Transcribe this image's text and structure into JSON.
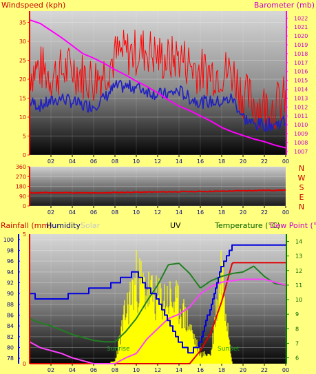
{
  "colors": {
    "background": "#ffff80",
    "wind_speed": "#ff0000",
    "wind_avg": "#2020c0",
    "barometer": "#ff00ff",
    "wind_dir": "#e00000",
    "rainfall": "#e00000",
    "humidity": "#0000e0",
    "solar": "#ffff00",
    "temperature": "#208020",
    "dew_point": "#ff40ff",
    "label_red": "#cc0000",
    "label_navy": "#000080",
    "label_green": "#006000",
    "label_magenta": "#cc00cc",
    "label_gray": "#c8c8c8",
    "rain_axis": "#ff0000",
    "humidity_axis": "#0000ff",
    "temp_axis": "#008000"
  },
  "x_ticks": [
    "02",
    "04",
    "06",
    "08",
    "10",
    "12",
    "14",
    "16",
    "18",
    "20",
    "22",
    "00"
  ],
  "chart_data": [
    {
      "type": "line",
      "panel": "wind-barometer",
      "title": "",
      "left_axis_label": "Windspeed (kph)",
      "right_axis_label": "Barometer (mb)",
      "left_ticks": [
        "0",
        "5",
        "10",
        "15",
        "20",
        "25",
        "30",
        "35"
      ],
      "left_ylim": [
        0,
        38
      ],
      "right_ticks": [
        "1007",
        "1008",
        "1009",
        "1010",
        "1011",
        "1012",
        "1013",
        "1014",
        "1015",
        "1016",
        "1017",
        "1018",
        "1019",
        "1020",
        "1021",
        "1022"
      ],
      "right_ylim": [
        1006.6,
        1022.8
      ],
      "x_hours": [
        0,
        1,
        2,
        3,
        4,
        5,
        6,
        7,
        8,
        9,
        10,
        11,
        12,
        13,
        14,
        15,
        16,
        17,
        18,
        19,
        20,
        21,
        22,
        23,
        24
      ],
      "series": [
        {
          "key": "wind_gust",
          "axis": "left",
          "values": [
            22,
            23,
            21,
            22,
            23,
            21,
            20,
            22,
            26,
            27,
            27,
            28,
            26,
            25,
            26,
            24,
            22,
            22,
            22,
            22,
            16,
            14,
            13,
            13,
            15
          ]
        },
        {
          "key": "wind_avg",
          "axis": "left",
          "values": [
            14,
            13,
            14,
            15,
            14,
            13,
            13,
            15,
            18,
            18,
            18,
            17,
            16,
            16,
            17,
            15,
            14,
            14,
            14,
            15,
            10,
            8,
            8,
            8,
            9
          ]
        },
        {
          "key": "barometer",
          "axis": "right",
          "values": [
            1021.8,
            1021.4,
            1020.6,
            1019.8,
            1018.9,
            1018.0,
            1017.5,
            1016.9,
            1016.2,
            1015.6,
            1014.9,
            1014.3,
            1013.6,
            1012.8,
            1012.1,
            1011.6,
            1011.0,
            1010.4,
            1009.7,
            1009.2,
            1008.8,
            1008.4,
            1008.1,
            1007.7,
            1007.4
          ]
        }
      ]
    },
    {
      "type": "line",
      "panel": "wind-direction",
      "left_ticks": [
        "0",
        "90",
        "180",
        "270",
        "360"
      ],
      "left_ylim": [
        0,
        360
      ],
      "right_labels": [
        "N",
        "W",
        "S",
        "E",
        "N"
      ],
      "x_hours": [
        0,
        3,
        6,
        9,
        12,
        15,
        18,
        21,
        24
      ],
      "series": [
        {
          "key": "wind_direction",
          "values": [
            120,
            122,
            118,
            125,
            128,
            132,
            135,
            142,
            145
          ]
        }
      ]
    },
    {
      "type": "line",
      "panel": "rain-humidity-solar-uv-temperature",
      "rain_axis_label": "Rainfall (mm)",
      "humidity_axis_label": "Humidity",
      "solar_label": "Solar",
      "uv_label": "UV",
      "temperature_label": "Temperature (°C)",
      "dewpoint_label": "Dew Point (°C)",
      "rain_ticks": [
        "0",
        "5"
      ],
      "rain_ylim": [
        0,
        5
      ],
      "humidity_ticks": [
        "78",
        "80",
        "82",
        "84",
        "86",
        "88",
        "90",
        "92",
        "94",
        "96",
        "98",
        "100"
      ],
      "humidity_ylim": [
        77,
        101
      ],
      "temp_ticks": [
        "6",
        "7",
        "8",
        "9",
        "10",
        "11",
        "12",
        "13",
        "14"
      ],
      "temp_ylim": [
        5.6,
        14.5
      ],
      "annotations": [
        "Sunrise",
        "SunSet"
      ],
      "x_hours": [
        0,
        1,
        2,
        3,
        4,
        5,
        6,
        7,
        8,
        9,
        10,
        11,
        12,
        13,
        14,
        15,
        16,
        17,
        18,
        19,
        20,
        21,
        22,
        23,
        24
      ],
      "series": [
        {
          "key": "humidity",
          "axis": "humidity",
          "values": [
            90,
            89,
            89,
            89,
            90,
            90,
            91,
            91,
            92,
            93,
            94,
            91,
            89,
            85,
            81,
            79,
            81,
            88,
            95,
            99,
            99,
            99,
            99,
            99,
            99
          ]
        },
        {
          "key": "temperature",
          "axis": "temp",
          "values": [
            8.7,
            8.4,
            8.2,
            7.9,
            7.6,
            7.4,
            7.2,
            7.1,
            7.1,
            7.8,
            8.7,
            9.9,
            11.0,
            12.4,
            12.5,
            11.8,
            10.8,
            11.3,
            11.6,
            11.8,
            11.9,
            12.3,
            11.6,
            11.1,
            11.0
          ]
        },
        {
          "key": "dew_point",
          "axis": "temp",
          "values": [
            7.1,
            6.7,
            6.5,
            6.3,
            6.0,
            5.8,
            5.6,
            5.6,
            5.6,
            6.0,
            6.3,
            7.3,
            8.0,
            8.7,
            9.0,
            9.5,
            10.4,
            10.9,
            11.2,
            11.3,
            11.4,
            11.4,
            11.4,
            11.2,
            11.0
          ]
        },
        {
          "key": "rainfall",
          "axis": "rain",
          "values": [
            0,
            0,
            0,
            0,
            0,
            0,
            0,
            0,
            0,
            0,
            0,
            0,
            0,
            0,
            0,
            0,
            0.5,
            1.2,
            2.4,
            3.9,
            3.9,
            3.9,
            3.9,
            3.9,
            3.9
          ]
        },
        {
          "key": "solar",
          "axis": "rain",
          "values": [
            0,
            0,
            0,
            0,
            0,
            0,
            0,
            0,
            0.1,
            2.2,
            3.6,
            3.1,
            2.7,
            2.8,
            2.5,
            1.6,
            0.4,
            0.4,
            4.3,
            0,
            0,
            0,
            0,
            0,
            0
          ]
        }
      ]
    }
  ]
}
